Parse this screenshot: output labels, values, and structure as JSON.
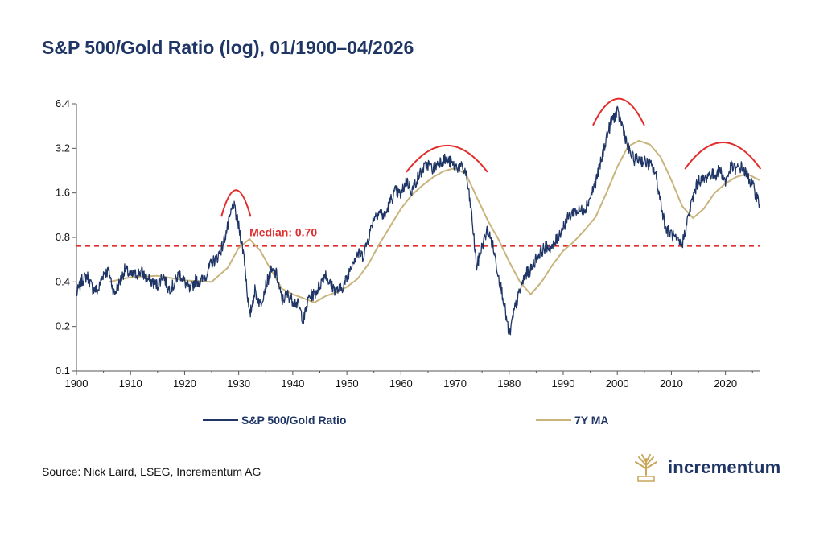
{
  "title": "S&P 500/Gold Ratio (log), 01/1900–04/2026",
  "source": "Source: Nick Laird, LSEG, Incrementum AG",
  "logo_text": "incrementum",
  "logo_icon": "tree-icon",
  "colors": {
    "ratio": "#1f3566",
    "ma": "#c8b47c",
    "median": "#e32d2d",
    "arcs": "#e32d2d",
    "logo_gold": "#c9a65a"
  },
  "chart_data": {
    "type": "line",
    "title": "S&P 500/Gold Ratio (log), 01/1900–04/2026",
    "y_scale": "log2",
    "ylim": [
      0.1,
      6.4
    ],
    "xlim": [
      1900,
      2026.3
    ],
    "x_ticks": [
      1900,
      1910,
      1920,
      1930,
      1940,
      1950,
      1960,
      1970,
      1980,
      1990,
      2000,
      2010,
      2020
    ],
    "y_ticks": [
      0.1,
      0.2,
      0.4,
      0.8,
      1.6,
      3.2,
      6.4
    ],
    "y_tick_labels": [
      "0.1",
      "0.2",
      "0.4",
      "0.8",
      "1.6",
      "3.2",
      "6.4"
    ],
    "grid": false,
    "legend_position": "bottom",
    "median": {
      "value": 0.7,
      "label": "Median: 0.70"
    },
    "series": [
      {
        "name": "S&P 500/Gold Ratio",
        "color": "#1f3566",
        "points": [
          [
            1900,
            0.33
          ],
          [
            1901,
            0.41
          ],
          [
            1902,
            0.44
          ],
          [
            1903,
            0.36
          ],
          [
            1904,
            0.35
          ],
          [
            1905,
            0.46
          ],
          [
            1906,
            0.47
          ],
          [
            1907,
            0.33
          ],
          [
            1908,
            0.4
          ],
          [
            1909,
            0.49
          ],
          [
            1910,
            0.44
          ],
          [
            1911,
            0.45
          ],
          [
            1912,
            0.47
          ],
          [
            1913,
            0.42
          ],
          [
            1914,
            0.4
          ],
          [
            1915,
            0.38
          ],
          [
            1916,
            0.45
          ],
          [
            1917,
            0.36
          ],
          [
            1918,
            0.38
          ],
          [
            1919,
            0.46
          ],
          [
            1920,
            0.4
          ],
          [
            1921,
            0.35
          ],
          [
            1922,
            0.41
          ],
          [
            1923,
            0.4
          ],
          [
            1924,
            0.45
          ],
          [
            1925,
            0.54
          ],
          [
            1926,
            0.58
          ],
          [
            1927,
            0.7
          ],
          [
            1928,
            0.95
          ],
          [
            1929,
            1.35
          ],
          [
            1930,
            0.95
          ],
          [
            1931,
            0.6
          ],
          [
            1932,
            0.23
          ],
          [
            1933,
            0.35
          ],
          [
            1934,
            0.28
          ],
          [
            1935,
            0.38
          ],
          [
            1936,
            0.47
          ],
          [
            1937,
            0.45
          ],
          [
            1938,
            0.3
          ],
          [
            1939,
            0.33
          ],
          [
            1940,
            0.3
          ],
          [
            1941,
            0.28
          ],
          [
            1942,
            0.22
          ],
          [
            1943,
            0.32
          ],
          [
            1944,
            0.33
          ],
          [
            1945,
            0.38
          ],
          [
            1946,
            0.46
          ],
          [
            1947,
            0.38
          ],
          [
            1948,
            0.35
          ],
          [
            1949,
            0.36
          ],
          [
            1950,
            0.42
          ],
          [
            1951,
            0.55
          ],
          [
            1952,
            0.62
          ],
          [
            1953,
            0.6
          ],
          [
            1954,
            0.8
          ],
          [
            1955,
            1.1
          ],
          [
            1956,
            1.2
          ],
          [
            1957,
            1.1
          ],
          [
            1958,
            1.4
          ],
          [
            1959,
            1.65
          ],
          [
            1960,
            1.55
          ],
          [
            1961,
            1.95
          ],
          [
            1962,
            1.65
          ],
          [
            1963,
            2.0
          ],
          [
            1964,
            2.3
          ],
          [
            1965,
            2.5
          ],
          [
            1966,
            2.3
          ],
          [
            1967,
            2.6
          ],
          [
            1968,
            2.7
          ],
          [
            1969,
            2.6
          ],
          [
            1970,
            2.4
          ],
          [
            1971,
            2.4
          ],
          [
            1972,
            2.2
          ],
          [
            1973,
            1.2
          ],
          [
            1974,
            0.5
          ],
          [
            1975,
            0.7
          ],
          [
            1976,
            0.9
          ],
          [
            1977,
            0.7
          ],
          [
            1978,
            0.45
          ],
          [
            1979,
            0.3
          ],
          [
            1980,
            0.17
          ],
          [
            1981,
            0.26
          ],
          [
            1982,
            0.35
          ],
          [
            1983,
            0.45
          ],
          [
            1984,
            0.48
          ],
          [
            1985,
            0.58
          ],
          [
            1986,
            0.65
          ],
          [
            1987,
            0.7
          ],
          [
            1988,
            0.68
          ],
          [
            1989,
            0.8
          ],
          [
            1990,
            0.95
          ],
          [
            1991,
            1.1
          ],
          [
            1992,
            1.2
          ],
          [
            1993,
            1.2
          ],
          [
            1994,
            1.25
          ],
          [
            1995,
            1.5
          ],
          [
            1996,
            1.9
          ],
          [
            1997,
            2.6
          ],
          [
            1998,
            3.8
          ],
          [
            1999,
            5.0
          ],
          [
            2000,
            5.6
          ],
          [
            2001,
            4.5
          ],
          [
            2002,
            3.2
          ],
          [
            2003,
            2.7
          ],
          [
            2004,
            2.7
          ],
          [
            2005,
            2.6
          ],
          [
            2006,
            2.5
          ],
          [
            2007,
            2.2
          ],
          [
            2008,
            1.4
          ],
          [
            2009,
            0.9
          ],
          [
            2010,
            0.85
          ],
          [
            2011,
            0.75
          ],
          [
            2012,
            0.72
          ],
          [
            2013,
            1.05
          ],
          [
            2014,
            1.5
          ],
          [
            2015,
            1.95
          ],
          [
            2016,
            1.95
          ],
          [
            2017,
            2.15
          ],
          [
            2018,
            2.1
          ],
          [
            2019,
            2.3
          ],
          [
            2020,
            1.9
          ],
          [
            2021,
            2.4
          ],
          [
            2022,
            2.3
          ],
          [
            2023,
            2.4
          ],
          [
            2024,
            2.1
          ],
          [
            2025,
            1.8
          ],
          [
            2026.3,
            1.35
          ]
        ]
      },
      {
        "name": "7Y MA",
        "color": "#c8b47c",
        "points": [
          [
            1906,
            0.4
          ],
          [
            1910,
            0.43
          ],
          [
            1915,
            0.44
          ],
          [
            1920,
            0.41
          ],
          [
            1925,
            0.4
          ],
          [
            1928,
            0.5
          ],
          [
            1930,
            0.68
          ],
          [
            1932,
            0.78
          ],
          [
            1934,
            0.65
          ],
          [
            1936,
            0.48
          ],
          [
            1938,
            0.36
          ],
          [
            1940,
            0.33
          ],
          [
            1942,
            0.31
          ],
          [
            1944,
            0.29
          ],
          [
            1946,
            0.32
          ],
          [
            1948,
            0.34
          ],
          [
            1950,
            0.37
          ],
          [
            1952,
            0.42
          ],
          [
            1954,
            0.53
          ],
          [
            1956,
            0.72
          ],
          [
            1958,
            0.95
          ],
          [
            1960,
            1.25
          ],
          [
            1962,
            1.55
          ],
          [
            1964,
            1.8
          ],
          [
            1966,
            2.05
          ],
          [
            1968,
            2.25
          ],
          [
            1970,
            2.35
          ],
          [
            1972,
            2.15
          ],
          [
            1974,
            1.5
          ],
          [
            1976,
            1.05
          ],
          [
            1978,
            0.78
          ],
          [
            1980,
            0.55
          ],
          [
            1982,
            0.4
          ],
          [
            1984,
            0.33
          ],
          [
            1986,
            0.4
          ],
          [
            1988,
            0.52
          ],
          [
            1990,
            0.65
          ],
          [
            1992,
            0.75
          ],
          [
            1994,
            0.9
          ],
          [
            1996,
            1.1
          ],
          [
            1998,
            1.6
          ],
          [
            2000,
            2.4
          ],
          [
            2002,
            3.3
          ],
          [
            2004,
            3.6
          ],
          [
            2006,
            3.4
          ],
          [
            2008,
            2.8
          ],
          [
            2010,
            1.95
          ],
          [
            2012,
            1.3
          ],
          [
            2014,
            1.08
          ],
          [
            2016,
            1.25
          ],
          [
            2018,
            1.6
          ],
          [
            2020,
            1.85
          ],
          [
            2022,
            2.05
          ],
          [
            2024,
            2.15
          ],
          [
            2026.3,
            1.95
          ]
        ]
      }
    ]
  }
}
